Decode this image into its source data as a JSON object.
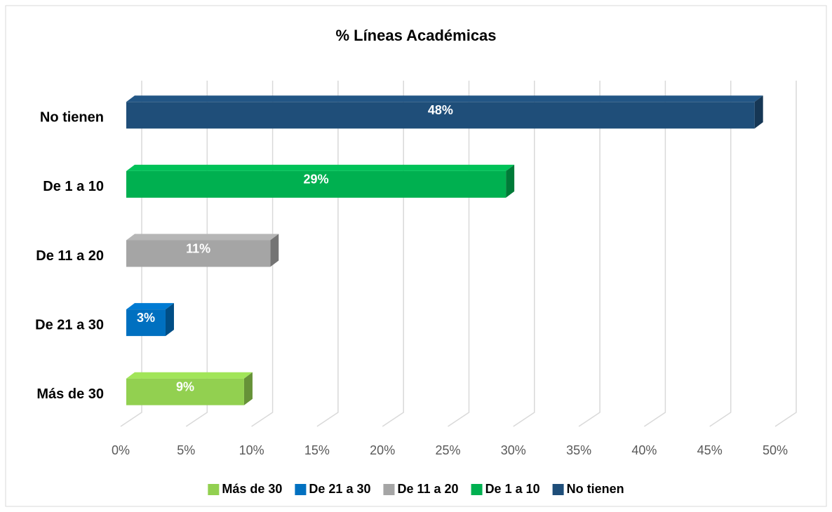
{
  "chart_data": {
    "type": "bar",
    "orientation": "horizontal",
    "title": "% Líneas Académicas",
    "categories": [
      "Más de 30",
      "De 21 a 30",
      "De 11 a 20",
      "De 1 a 10",
      "No tienen"
    ],
    "values": [
      9,
      3,
      11,
      29,
      48
    ],
    "value_labels": [
      "9%",
      "3%",
      "11%",
      "29%",
      "48%"
    ],
    "colors": [
      "#92d050",
      "#0070c0",
      "#a5a5a5",
      "#00b050",
      "#1f4e79"
    ],
    "xlim": [
      0,
      50
    ],
    "xticks": [
      {
        "value": 0,
        "label": "0%"
      },
      {
        "value": 5,
        "label": "5%"
      },
      {
        "value": 10,
        "label": "10%"
      },
      {
        "value": 15,
        "label": "15%"
      },
      {
        "value": 20,
        "label": "20%"
      },
      {
        "value": 25,
        "label": "25%"
      },
      {
        "value": 30,
        "label": "30%"
      },
      {
        "value": 35,
        "label": "35%"
      },
      {
        "value": 40,
        "label": "40%"
      },
      {
        "value": 45,
        "label": "45%"
      },
      {
        "value": 50,
        "label": "50%"
      }
    ],
    "grid": true,
    "legend": "bottom"
  }
}
